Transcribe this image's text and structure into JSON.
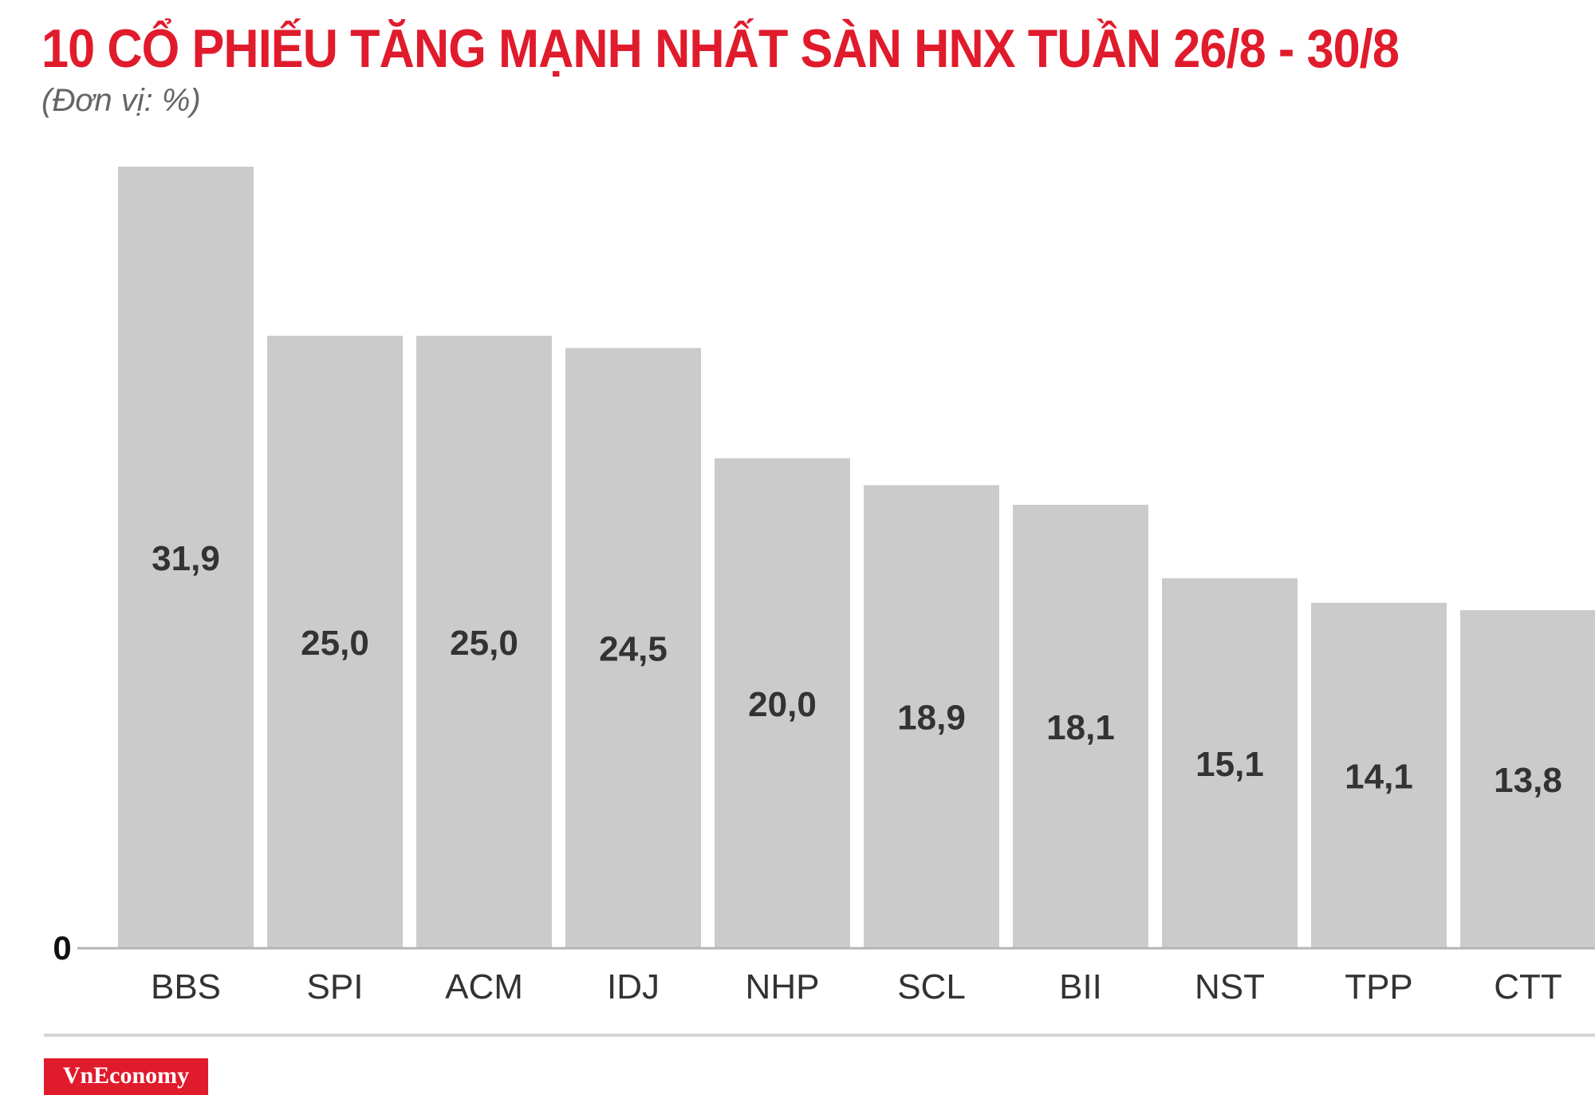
{
  "title": "10 CỔ PHIẾU TĂNG MẠNH NHẤT SÀN HNX TUẦN 26/8 - 30/8",
  "subtitle": "(Đơn vị: %)",
  "brand": "VnEconomy",
  "colors": {
    "title": "#e01b2c",
    "bar": "#cccbcc",
    "axis": "#b5b5b5",
    "brand_bg": "#e01b2c"
  },
  "chart_data": {
    "type": "bar",
    "title": "10 CỔ PHIẾU TĂNG MẠNH NHẤT SÀN HNX TUẦN 26/8 - 30/8",
    "subtitle": "(Đơn vị: %)",
    "categories": [
      "BBS",
      "SPI",
      "ACM",
      "IDJ",
      "NHP",
      "SCL",
      "BII",
      "NST",
      "TPP",
      "CTT"
    ],
    "values": [
      31.9,
      25.0,
      25.0,
      24.5,
      20.0,
      18.9,
      18.1,
      15.1,
      14.1,
      13.8
    ],
    "value_labels": [
      "31,9",
      "25,0",
      "25,0",
      "24,5",
      "20,0",
      "18,9",
      "18,1",
      "15,1",
      "14,1",
      "13,8"
    ],
    "y_tick_labels": [
      "0"
    ],
    "ylim": [
      0,
      31.9
    ],
    "xlabel": "",
    "ylabel": "",
    "grid": false,
    "legend": "none"
  }
}
